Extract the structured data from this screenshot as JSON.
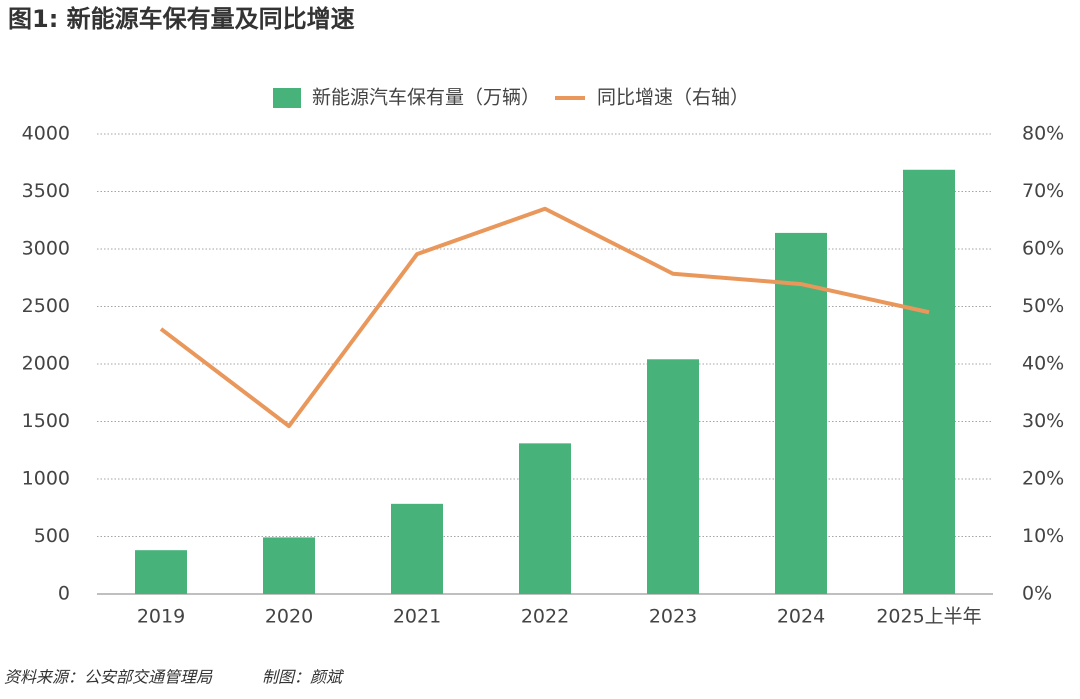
{
  "chart_data": {
    "type": "bar-line",
    "title": "图1: 新能源车保有量及同比增速",
    "source": "资料来源：公安部交通管理局",
    "credit": "制图：颜斌",
    "categories": [
      "2019",
      "2020",
      "2021",
      "2022",
      "2023",
      "2024",
      "2025上半年"
    ],
    "series": [
      {
        "name": "新能源汽车保有量（万辆）",
        "color": "#47b27a",
        "type": "bar",
        "values": [
          381,
          492,
          784,
          1310,
          2041,
          3140,
          3689
        ]
      },
      {
        "name": "同比增速（右轴）",
        "color": "#e9975b",
        "type": "line",
        "axis": "y2",
        "values": [
          46.1,
          29.2,
          59.1,
          67.0,
          55.7,
          53.9,
          49.0
        ]
      }
    ],
    "ylim": [
      0,
      4000
    ],
    "yticks": [
      0,
      500,
      1000,
      1500,
      2000,
      2500,
      3000,
      3500,
      4000
    ],
    "y2lim": [
      0,
      80
    ],
    "y2ticks": [
      {
        "value": 0,
        "label": "0%"
      },
      {
        "value": 10,
        "label": "10%"
      },
      {
        "value": 20,
        "label": "20%"
      },
      {
        "value": 30,
        "label": "30%"
      },
      {
        "value": 40,
        "label": "40%"
      },
      {
        "value": 50,
        "label": "50%"
      },
      {
        "value": 60,
        "label": "60%"
      },
      {
        "value": 70,
        "label": "70%"
      },
      {
        "value": 80,
        "label": "80%"
      }
    ],
    "grid": true,
    "legend": "top"
  }
}
